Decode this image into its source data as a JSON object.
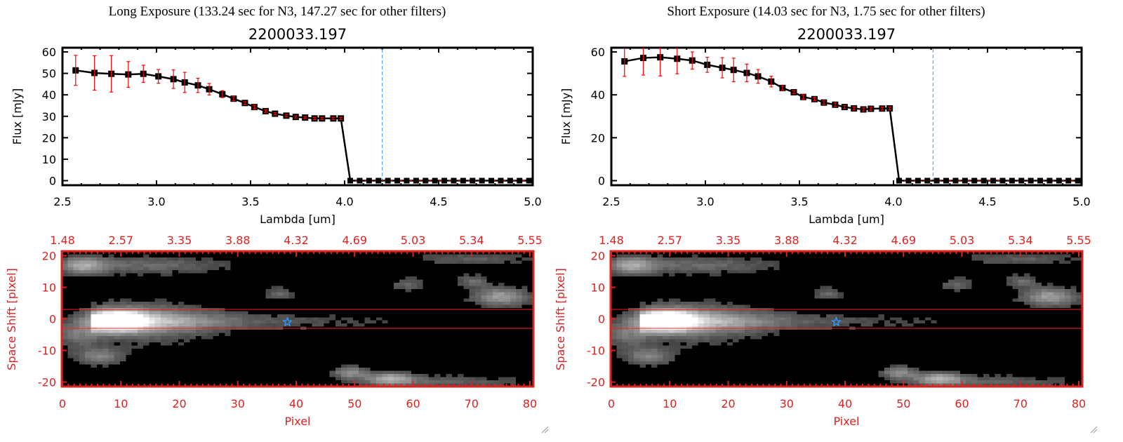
{
  "colors": {
    "axis": "#000000",
    "marker": "#000000",
    "error": "#ff0000",
    "marker_fill": "#cc0000",
    "guide_line": "#3399ff",
    "image_axis": "#dd2222",
    "star": "#3399ff"
  },
  "chart_data": [
    {
      "type": "line",
      "panel": "left",
      "suptitle": "Long Exposure (133.24 sec for N3, 147.27 sec for other filters)",
      "title": "2200033.197",
      "xlabel": "Lambda [um]",
      "ylabel": "Flux [mJy]",
      "xlim": [
        2.5,
        5.0
      ],
      "ylim": [
        -2,
        62
      ],
      "xticks": [
        "2.5",
        "3.0",
        "3.5",
        "4.0",
        "4.5",
        "5.0"
      ],
      "yticks": [
        "0",
        "10",
        "20",
        "30",
        "40",
        "50",
        "60"
      ],
      "guide_lambda": 4.2,
      "lambda": [
        2.57,
        2.67,
        2.76,
        2.85,
        2.93,
        3.01,
        3.09,
        3.15,
        3.22,
        3.28,
        3.35,
        3.41,
        3.47,
        3.52,
        3.58,
        3.63,
        3.69,
        3.74,
        3.79,
        3.84,
        3.88,
        3.94,
        3.98
      ],
      "flux": [
        51.4,
        50.2,
        49.8,
        49.5,
        49.8,
        48.6,
        47.3,
        45.8,
        44.4,
        42.6,
        40.3,
        38.2,
        36.2,
        34.3,
        32.4,
        31.2,
        30.3,
        29.7,
        29.4,
        29.0,
        29.0,
        29.0,
        29.0
      ],
      "error": [
        7,
        8,
        8.5,
        6,
        4,
        3.2,
        4.3,
        4.7,
        3.3,
        2.7,
        1.6,
        1.0,
        0.6,
        0.9,
        0.6,
        0.5,
        0.5,
        0.5,
        0.5,
        0.5,
        0.5,
        0.5,
        0.5
      ],
      "zero_lambda": [
        4.03,
        4.08,
        4.13,
        4.18,
        4.23,
        4.28,
        4.33,
        4.38,
        4.43,
        4.48,
        4.53,
        4.58,
        4.63,
        4.68,
        4.73,
        4.78,
        4.83,
        4.88,
        4.93,
        4.98
      ]
    },
    {
      "type": "line",
      "panel": "right",
      "suptitle": "Short Exposure (14.03 sec for N3, 1.75 sec for other filters)",
      "title": "2200033.197",
      "xlabel": "Lambda [um]",
      "ylabel": "Flux [mJy]",
      "xlim": [
        2.5,
        5.0
      ],
      "ylim": [
        -2,
        62
      ],
      "xticks": [
        "2.5",
        "3.0",
        "3.5",
        "4.0",
        "4.5",
        "5.0"
      ],
      "yticks": [
        "0",
        "20",
        "40",
        "60"
      ],
      "guide_lambda": 4.21,
      "lambda": [
        2.57,
        2.67,
        2.76,
        2.85,
        2.93,
        3.01,
        3.09,
        3.15,
        3.22,
        3.28,
        3.35,
        3.41,
        3.47,
        3.52,
        3.58,
        3.63,
        3.69,
        3.74,
        3.79,
        3.84,
        3.88,
        3.94,
        3.98
      ],
      "flux": [
        55.6,
        57.2,
        57.5,
        56.8,
        56.0,
        54.0,
        52.6,
        51.6,
        50.2,
        48.6,
        46.2,
        43.2,
        41.2,
        39.0,
        38.0,
        36.4,
        35.4,
        34.3,
        33.7,
        33.2,
        33.5,
        33.6,
        33.7
      ],
      "error": [
        7,
        8,
        8.7,
        7,
        4,
        3.5,
        4.7,
        5.5,
        4.1,
        3.2,
        2.5,
        1.0,
        0.7,
        1.0,
        0.8,
        0.8,
        0.8,
        0.7,
        0.7,
        0.7,
        0.7,
        0.7,
        0.7
      ],
      "zero_lambda": [
        4.03,
        4.08,
        4.13,
        4.18,
        4.23,
        4.28,
        4.33,
        4.38,
        4.43,
        4.48,
        4.53,
        4.58,
        4.63,
        4.68,
        4.73,
        4.78,
        4.83,
        4.88,
        4.93,
        4.98
      ]
    },
    {
      "type": "heatmap",
      "panel": "left",
      "xlabel": "Pixel",
      "ylabel": "Space Shift [pixel]",
      "xlim": [
        0,
        80
      ],
      "ylim": [
        -21.5,
        21.5
      ],
      "xticks": [
        "0",
        "10",
        "20",
        "30",
        "40",
        "50",
        "60",
        "70",
        "80"
      ],
      "yticks": [
        "-20",
        "-10",
        "0",
        "10",
        "20"
      ],
      "top_ticks": [
        "1.48",
        "2.57",
        "3.35",
        "3.88",
        "4.32",
        "4.69",
        "5.03",
        "5.34",
        "5.55"
      ],
      "aperture_shift": [
        -3,
        3
      ],
      "star": {
        "pixel": 38.5,
        "shift": -1
      }
    },
    {
      "type": "heatmap",
      "panel": "right",
      "xlabel": "Pixel",
      "ylabel": "Space Shift [pixel]",
      "xlim": [
        0,
        80
      ],
      "ylim": [
        -21.5,
        21.5
      ],
      "xticks": [
        "0",
        "10",
        "20",
        "30",
        "40",
        "50",
        "60",
        "70",
        "80"
      ],
      "yticks": [
        "-20",
        "-10",
        "0",
        "10",
        "20"
      ],
      "top_ticks": [
        "1.48",
        "2.57",
        "3.35",
        "3.88",
        "4.32",
        "4.69",
        "5.03",
        "5.34",
        "5.55"
      ],
      "aperture_shift": [
        -3,
        3
      ],
      "star": {
        "pixel": 38.5,
        "shift": -1
      }
    }
  ]
}
